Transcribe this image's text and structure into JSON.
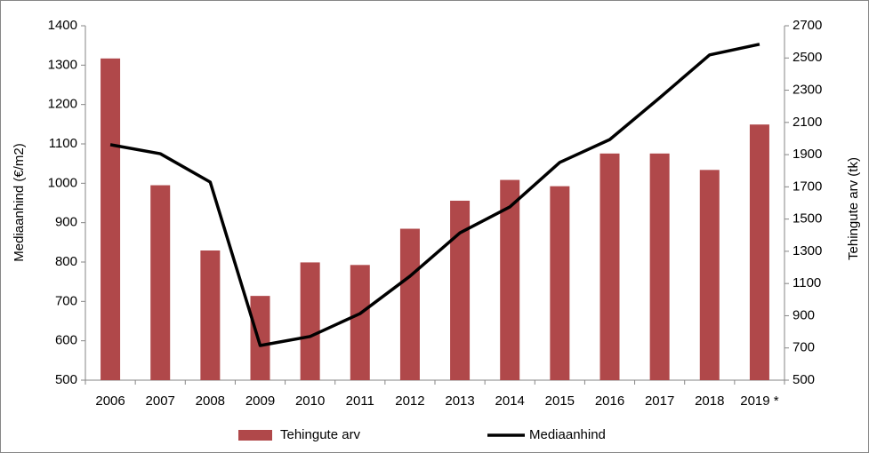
{
  "chart_data": {
    "type": "combo",
    "categories": [
      "2006",
      "2007",
      "2008",
      "2009",
      "2010",
      "2011",
      "2012",
      "2013",
      "2014",
      "2015",
      "2016",
      "2017",
      "2018",
      "2019 *"
    ],
    "series": [
      {
        "name": "Tehingute arv",
        "type": "bar",
        "axis": "y2",
        "color": "#b0484a",
        "values": [
          2497,
          1710,
          1305,
          1023,
          1231,
          1215,
          1440,
          1614,
          1743,
          1704,
          1907,
          1907,
          1805,
          2087
        ]
      },
      {
        "name": "Mediaanhind",
        "type": "line",
        "axis": "y",
        "color": "#000000",
        "values": [
          1098,
          1075,
          1003,
          588,
          611,
          669,
          764,
          874,
          940,
          1053,
          1111,
          1217,
          1326,
          1353
        ]
      }
    ],
    "ylabel": "Mediaanhind (€/m2)",
    "y2label": "Tehingute arv (tk)",
    "ylim": [
      500,
      1400
    ],
    "yticks": [
      500,
      600,
      700,
      800,
      900,
      1000,
      1100,
      1200,
      1300,
      1400
    ],
    "y2lim": [
      500,
      2700
    ],
    "y2ticks": [
      500,
      700,
      900,
      1100,
      1300,
      1500,
      1700,
      1900,
      2100,
      2300,
      2500,
      2700
    ],
    "grid": false,
    "legend": "bottom"
  }
}
